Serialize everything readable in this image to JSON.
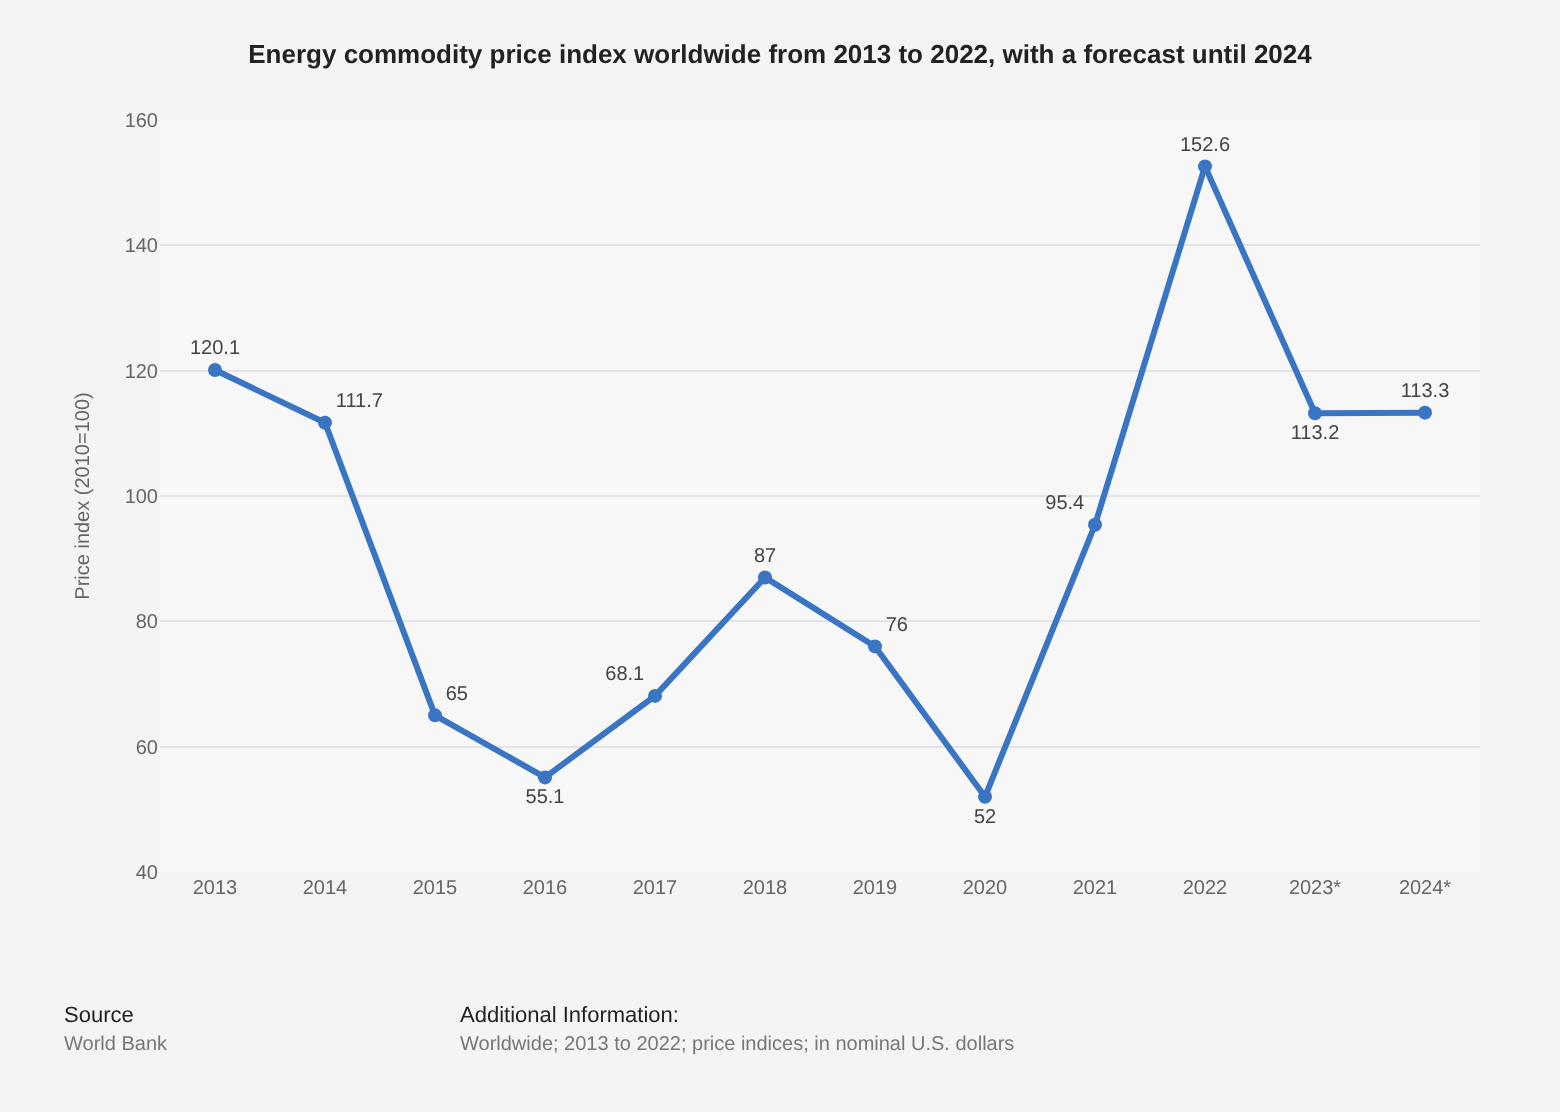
{
  "chart_data": {
    "type": "line",
    "title": "Energy commodity price index worldwide from 2013 to 2022, with a forecast until 2024",
    "ylabel": "Price index (2010=100)",
    "categories": [
      "2013",
      "2014",
      "2015",
      "2016",
      "2017",
      "2018",
      "2019",
      "2020",
      "2021",
      "2022",
      "2023*",
      "2024*"
    ],
    "series": [
      {
        "color": "#3a75c4",
        "values": [
          120.1,
          111.7,
          65,
          55.1,
          68.1,
          87,
          76,
          52,
          95.4,
          152.6,
          113.2,
          113.3
        ]
      }
    ],
    "ylim": [
      40,
      160
    ],
    "yticks": [
      40,
      60,
      80,
      100,
      120,
      140,
      160
    ],
    "grid": "y",
    "marker": "circle",
    "line_style": "solid",
    "data_labels": true,
    "annotations": [
      "Source",
      "World Bank",
      "Additional Information:",
      "Worldwide; 2013 to 2022; price indices; in nominal U.S. dollars"
    ]
  }
}
